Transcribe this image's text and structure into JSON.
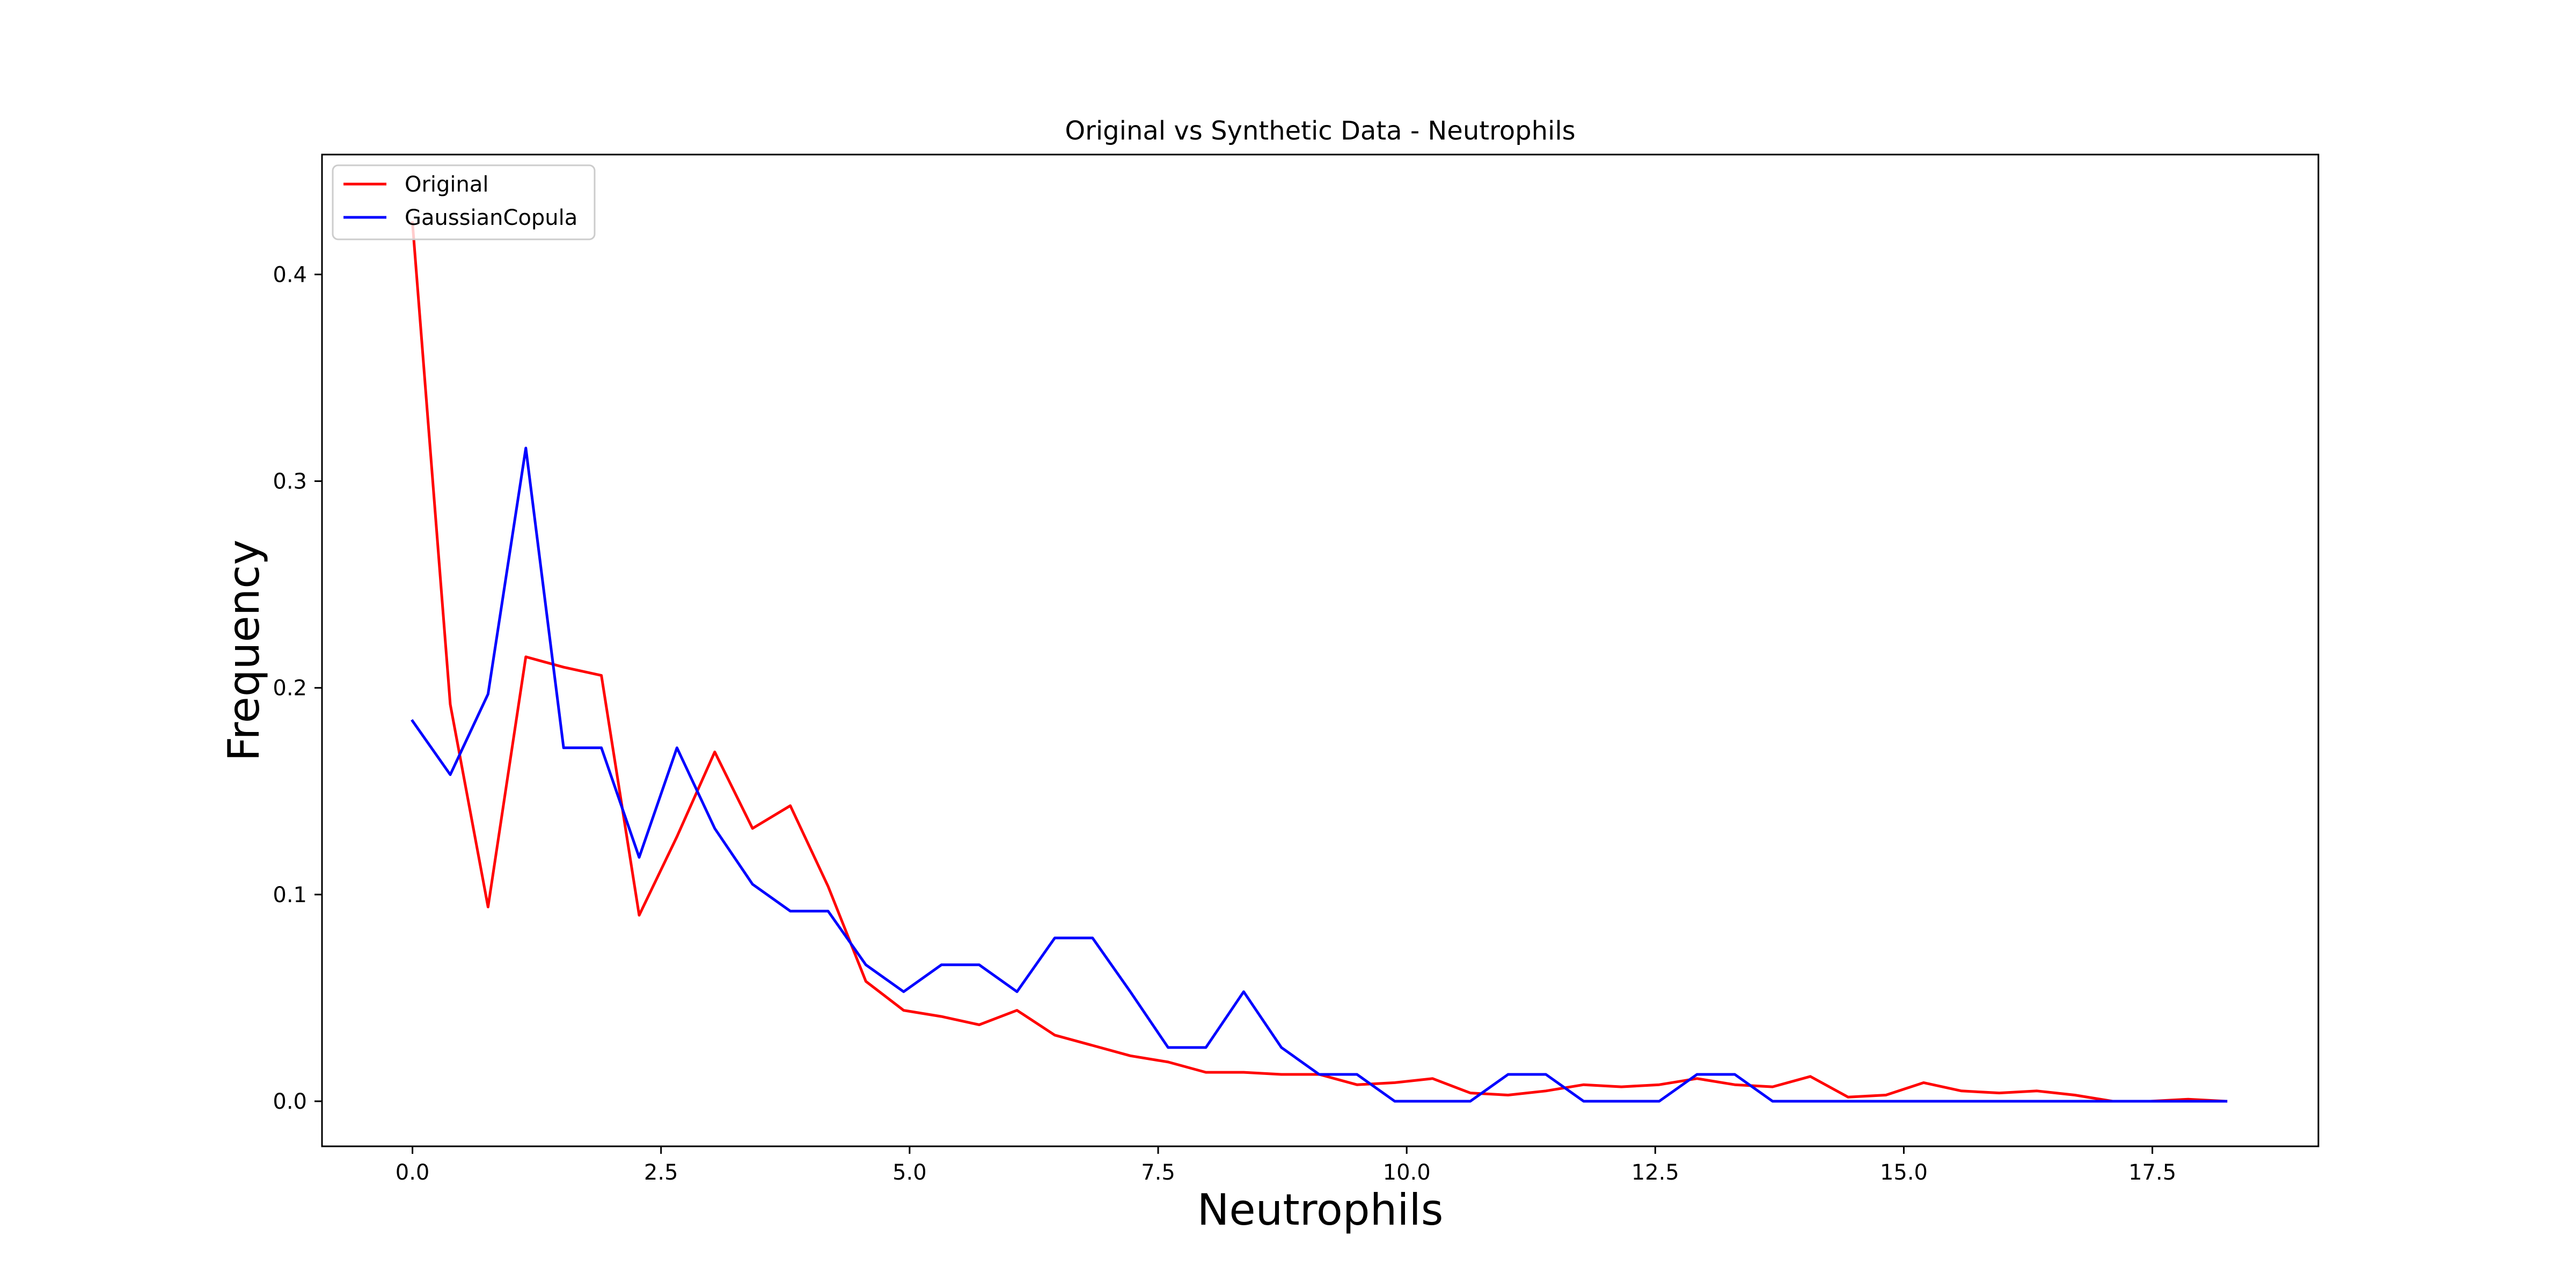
{
  "chart_data": {
    "type": "line",
    "title": "Original vs Synthetic Data - Neutrophils",
    "xlabel": "Neutrophils",
    "ylabel": "Frequency",
    "xlim": [
      -0.91,
      19.17
    ],
    "ylim": [
      -0.0218,
      0.458
    ],
    "xticks": [
      "0.0",
      "2.5",
      "5.0",
      "7.5",
      "10.0",
      "12.5",
      "15.0",
      "17.5"
    ],
    "yticks": [
      "0.0",
      "0.1",
      "0.2",
      "0.3",
      "0.4"
    ],
    "grid": false,
    "legend_position": "upper left",
    "x": [
      0.0,
      0.38,
      0.76,
      1.14,
      1.52,
      1.9,
      2.28,
      2.66,
      3.04,
      3.42,
      3.8,
      4.18,
      4.56,
      4.94,
      5.32,
      5.7,
      6.08,
      6.46,
      6.84,
      7.22,
      7.6,
      7.98,
      8.36,
      8.74,
      9.12,
      9.5,
      9.88,
      10.26,
      10.64,
      11.02,
      11.4,
      11.78,
      12.16,
      12.54,
      12.92,
      13.3,
      13.68,
      14.06,
      14.44,
      14.82,
      15.2,
      15.58,
      15.96,
      16.34,
      16.72,
      17.1,
      17.48,
      17.86,
      18.24
    ],
    "series": [
      {
        "name": "Original",
        "color": "#ff0000",
        "values": [
          0.425,
          0.192,
          0.094,
          0.215,
          0.21,
          0.206,
          0.09,
          0.128,
          0.169,
          0.132,
          0.143,
          0.104,
          0.058,
          0.044,
          0.041,
          0.037,
          0.044,
          0.032,
          0.027,
          0.022,
          0.019,
          0.014,
          0.014,
          0.013,
          0.013,
          0.008,
          0.009,
          0.011,
          0.004,
          0.003,
          0.005,
          0.008,
          0.007,
          0.008,
          0.011,
          0.008,
          0.007,
          0.012,
          0.002,
          0.003,
          0.009,
          0.005,
          0.004,
          0.005,
          0.003,
          0.0,
          0.0,
          0.001,
          0.0
        ]
      },
      {
        "name": "GaussianCopula",
        "color": "#0000ff",
        "values": [
          0.184,
          0.158,
          0.197,
          0.316,
          0.171,
          0.171,
          0.118,
          0.171,
          0.132,
          0.105,
          0.092,
          0.092,
          0.066,
          0.053,
          0.066,
          0.066,
          0.053,
          0.079,
          0.079,
          0.053,
          0.026,
          0.026,
          0.053,
          0.026,
          0.013,
          0.013,
          0.0,
          0.0,
          0.0,
          0.013,
          0.013,
          0.0,
          0.0,
          0.0,
          0.013,
          0.013,
          0.0,
          0.0,
          0.0,
          0.0,
          0.0,
          0.0,
          0.0,
          0.0,
          0.0,
          0.0,
          0.0,
          0.0,
          0.0
        ]
      }
    ]
  }
}
